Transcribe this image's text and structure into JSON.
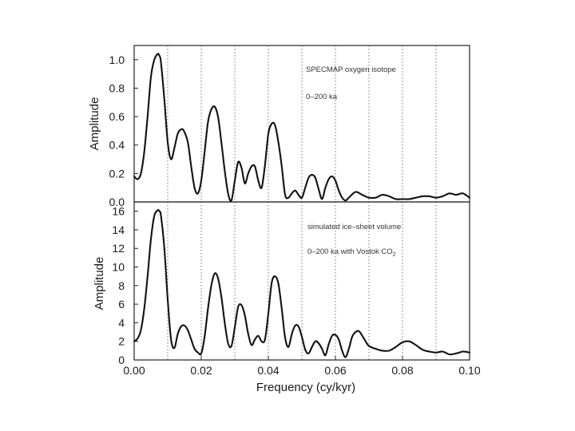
{
  "chart_data": [
    {
      "type": "line",
      "ylabel": "Amplitude",
      "ylim": [
        0,
        1.1
      ],
      "yticks": [
        0.0,
        0.2,
        0.4,
        0.6,
        0.8,
        1.0
      ],
      "ytick_labels": [
        "0.0",
        "0.2",
        "0.4",
        "0.6",
        "0.8",
        "1.0"
      ],
      "xlim": [
        0,
        0.1
      ],
      "grid_x": [
        0.01,
        0.02,
        0.03,
        0.04,
        0.05,
        0.06,
        0.07,
        0.08,
        0.09
      ],
      "annotations": [
        "SPECMAP oxygen isotope",
        "0–200 ka"
      ],
      "series": [
        {
          "x": [
            0.0,
            0.001,
            0.002,
            0.003,
            0.004,
            0.005,
            0.006,
            0.007,
            0.0075,
            0.008,
            0.009,
            0.01,
            0.011,
            0.012,
            0.013,
            0.014,
            0.0148,
            0.016,
            0.017,
            0.018,
            0.019,
            0.02,
            0.021,
            0.022,
            0.023,
            0.024,
            0.025,
            0.026,
            0.027,
            0.028,
            0.029,
            0.03,
            0.031,
            0.032,
            0.033,
            0.034,
            0.035,
            0.036,
            0.037,
            0.038,
            0.039,
            0.04,
            0.041,
            0.042,
            0.043,
            0.044,
            0.045,
            0.046,
            0.047,
            0.048,
            0.049,
            0.05,
            0.051,
            0.052,
            0.053,
            0.054,
            0.055,
            0.056,
            0.057,
            0.058,
            0.059,
            0.06,
            0.061,
            0.062,
            0.063,
            0.064,
            0.066,
            0.068,
            0.07,
            0.072,
            0.074,
            0.076,
            0.078,
            0.08,
            0.082,
            0.084,
            0.086,
            0.088,
            0.09,
            0.092,
            0.094,
            0.096,
            0.098,
            0.1
          ],
          "y": [
            0.18,
            0.16,
            0.2,
            0.35,
            0.6,
            0.88,
            1.0,
            1.04,
            1.03,
            0.98,
            0.72,
            0.42,
            0.3,
            0.38,
            0.48,
            0.51,
            0.5,
            0.42,
            0.25,
            0.1,
            0.06,
            0.15,
            0.35,
            0.56,
            0.65,
            0.67,
            0.6,
            0.42,
            0.22,
            0.06,
            0.01,
            0.15,
            0.28,
            0.24,
            0.13,
            0.2,
            0.25,
            0.25,
            0.15,
            0.1,
            0.26,
            0.48,
            0.55,
            0.54,
            0.42,
            0.25,
            0.05,
            0.03,
            0.06,
            0.08,
            0.05,
            0.03,
            0.1,
            0.17,
            0.19,
            0.17,
            0.09,
            0.02,
            0.1,
            0.16,
            0.18,
            0.15,
            0.08,
            0.03,
            0.01,
            0.03,
            0.07,
            0.05,
            0.03,
            0.03,
            0.05,
            0.04,
            0.02,
            0.02,
            0.02,
            0.03,
            0.04,
            0.04,
            0.03,
            0.04,
            0.06,
            0.05,
            0.06,
            0.03
          ]
        }
      ]
    },
    {
      "type": "line",
      "xlabel": "Frequency (cy/kyr)",
      "ylabel": "Amplitude",
      "ylim": [
        0,
        17
      ],
      "yticks": [
        0,
        2,
        4,
        6,
        8,
        10,
        12,
        14,
        16
      ],
      "ytick_labels": [
        "0",
        "2",
        "4",
        "6",
        "8",
        "10",
        "12",
        "14",
        "16"
      ],
      "xlim": [
        0,
        0.1
      ],
      "xticks": [
        0.0,
        0.02,
        0.04,
        0.06,
        0.08,
        0.1
      ],
      "xtick_labels": [
        "0.00",
        "0.02",
        "0.04",
        "0.06",
        "0.08",
        "0.10"
      ],
      "grid_x": [
        0.01,
        0.02,
        0.03,
        0.04,
        0.05,
        0.06,
        0.07,
        0.08,
        0.09
      ],
      "annotations": [
        "simulated ice–sheet volume",
        "0–200 ka with Vostok CO",
        "2"
      ],
      "series": [
        {
          "x": [
            0.0,
            0.001,
            0.002,
            0.003,
            0.004,
            0.005,
            0.006,
            0.007,
            0.0075,
            0.008,
            0.009,
            0.01,
            0.011,
            0.012,
            0.013,
            0.014,
            0.015,
            0.016,
            0.017,
            0.018,
            0.019,
            0.02,
            0.021,
            0.022,
            0.023,
            0.024,
            0.025,
            0.026,
            0.027,
            0.028,
            0.029,
            0.03,
            0.031,
            0.032,
            0.033,
            0.034,
            0.035,
            0.036,
            0.037,
            0.038,
            0.039,
            0.04,
            0.041,
            0.042,
            0.043,
            0.044,
            0.045,
            0.046,
            0.047,
            0.048,
            0.049,
            0.05,
            0.051,
            0.052,
            0.053,
            0.054,
            0.055,
            0.056,
            0.057,
            0.058,
            0.059,
            0.06,
            0.061,
            0.062,
            0.063,
            0.064,
            0.065,
            0.066,
            0.067,
            0.068,
            0.069,
            0.07,
            0.072,
            0.074,
            0.076,
            0.078,
            0.08,
            0.082,
            0.084,
            0.086,
            0.088,
            0.09,
            0.092,
            0.094,
            0.096,
            0.098,
            0.1
          ],
          "y": [
            2.0,
            2.3,
            3.2,
            5.5,
            9.0,
            13.0,
            15.5,
            16.1,
            16.0,
            15.5,
            12.0,
            6.5,
            2.2,
            1.3,
            2.8,
            3.6,
            3.7,
            3.2,
            2.2,
            1.2,
            0.8,
            0.7,
            2.5,
            5.5,
            8.0,
            9.3,
            8.8,
            6.8,
            4.0,
            1.8,
            1.5,
            3.5,
            5.7,
            5.9,
            4.8,
            2.8,
            1.6,
            2.2,
            2.6,
            2.0,
            2.2,
            5.0,
            8.3,
            9.0,
            8.2,
            5.5,
            2.4,
            1.4,
            2.8,
            3.7,
            3.6,
            2.5,
            1.1,
            0.7,
            1.4,
            2.0,
            1.8,
            1.2,
            0.5,
            1.7,
            2.6,
            2.7,
            2.2,
            1.0,
            0.3,
            1.2,
            2.5,
            3.0,
            3.1,
            2.6,
            2.0,
            1.5,
            1.2,
            1.0,
            1.0,
            1.4,
            1.9,
            2.0,
            1.6,
            1.1,
            0.9,
            0.8,
            0.9,
            0.6,
            0.7,
            0.9,
            0.8
          ]
        }
      ]
    }
  ]
}
